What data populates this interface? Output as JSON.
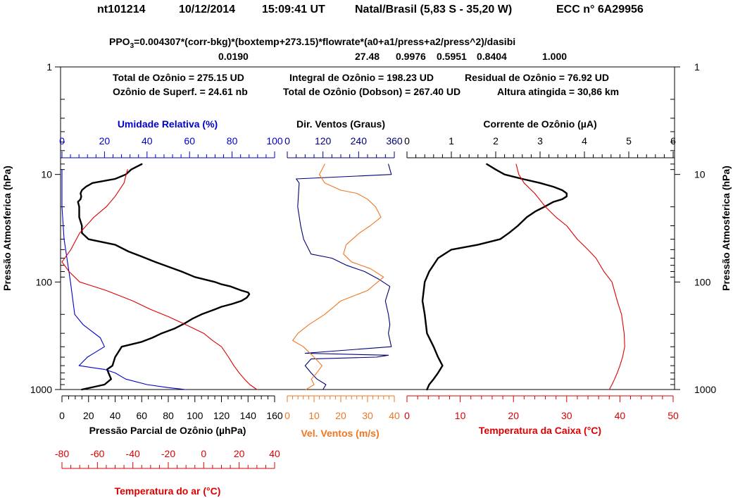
{
  "header": {
    "station": "nt101214",
    "date": "10/12/2014",
    "time": "15:09:41 UT",
    "location": "Natal/Brasil (5,83 S - 35,20 W)",
    "sonde": "ECC  n° 6A29956"
  },
  "formula": {
    "prefix": "PPO",
    "subscript": "3",
    "expression": "=0.004307*(corr-bkg)*(boxtemp+273.15)*flowrate*(a0+a1/press+a2/press^2)/dasibi",
    "coefficients": [
      "0.0190",
      "27.48",
      "0.9976",
      "0.5951",
      "0.8404",
      "1.000"
    ]
  },
  "summary": {
    "line1": [
      "Total de Ozônio = 275.15 UD",
      "Integral de Ozônio = 198.23  UD",
      "Residual  de Ozônio = 76.92  UD"
    ],
    "line2": [
      "Ozônio de Superf. = 24.61 nb",
      "Total de Ozônio (Dobson) = 267.40 UD",
      "Altura atingida = 30,86 km"
    ]
  },
  "colors": {
    "ozone": "#000000",
    "humidity": "#0000cc",
    "air_temperature": "#dd0000",
    "wind_direction": "#00007a",
    "wind_speed": "#ee7722",
    "ozone_current": "#000000",
    "box_temperature": "#dd0000",
    "axis_air_temperature": "#dd0000",
    "axis_wind_speed": "#ee7722",
    "axis_box_temperature": "#dd0000"
  },
  "chart_data": [
    {
      "type": "line",
      "panel": "left",
      "y_axis": {
        "label": "Pressão Atmosferica (hPa)",
        "scale": "log",
        "inverted": true,
        "range": [
          1,
          1000
        ],
        "ticks": [
          "1",
          "10",
          "100",
          "1000"
        ]
      },
      "axes": {
        "ozone": {
          "label": "Pressão Parcial de Ozônio (µhPa)",
          "position": "bottom",
          "range": [
            0,
            160
          ],
          "ticks": [
            "0",
            "20",
            "40",
            "60",
            "80",
            "100",
            "120",
            "140",
            "160"
          ]
        },
        "humidity": {
          "label": "Umidade Relativa (%)",
          "position": "top",
          "range": [
            0,
            100
          ],
          "ticks": [
            "0",
            "20",
            "40",
            "60",
            "80",
            "100"
          ]
        },
        "air_temperature": {
          "label": "Temperatura do ar (°C)",
          "position": "bottom-offset",
          "range": [
            -80,
            40
          ],
          "ticks": [
            "-80",
            "-60",
            "-40",
            "-20",
            "0",
            "20",
            "40"
          ]
        }
      },
      "series": [
        {
          "name": "Pressão Parcial de Ozônio",
          "axis": "ozone",
          "points": [
            [
              60,
              8
            ],
            [
              52,
              9
            ],
            [
              48,
              10
            ],
            [
              40,
              11
            ],
            [
              23,
              12
            ],
            [
              18,
              13
            ],
            [
              15,
              14
            ],
            [
              14,
              15
            ],
            [
              14.5,
              16
            ],
            [
              14,
              17
            ],
            [
              12,
              18
            ],
            [
              13,
              20
            ],
            [
              13,
              25
            ],
            [
              15,
              30
            ],
            [
              15,
              35
            ],
            [
              20,
              40
            ],
            [
              40,
              45
            ],
            [
              50,
              52
            ],
            [
              60,
              58
            ],
            [
              70,
              65
            ],
            [
              80,
              72
            ],
            [
              90,
              80
            ],
            [
              100,
              90
            ],
            [
              115,
              100
            ],
            [
              120,
              105
            ],
            [
              127,
              110
            ],
            [
              131,
              115
            ],
            [
              135,
              120
            ],
            [
              140,
              125
            ],
            [
              141,
              130
            ],
            [
              139,
              140
            ],
            [
              135,
              150
            ],
            [
              128,
              160
            ],
            [
              120,
              170
            ],
            [
              115,
              180
            ],
            [
              105,
              200
            ],
            [
              98,
              220
            ],
            [
              93,
              240
            ],
            [
              85,
              270
            ],
            [
              75,
              300
            ],
            [
              68,
              330
            ],
            [
              60,
              360
            ],
            [
              45,
              400
            ],
            [
              40,
              500
            ],
            [
              38,
              600
            ],
            [
              34,
              650
            ],
            [
              35,
              700
            ],
            [
              37,
              800
            ],
            [
              32,
              900
            ],
            [
              15,
              1000
            ]
          ]
        },
        {
          "name": "Umidade Relativa",
          "axis": "humidity",
          "points": [
            [
              0,
              9
            ],
            [
              0,
              20
            ],
            [
              1,
              40
            ],
            [
              4,
              100
            ],
            [
              6,
              200
            ],
            [
              10,
              250
            ],
            [
              18,
              330
            ],
            [
              20,
              400
            ],
            [
              12,
              500
            ],
            [
              8,
              600
            ],
            [
              20,
              650
            ],
            [
              25,
              700
            ],
            [
              30,
              800
            ],
            [
              40,
              900
            ],
            [
              50,
              960
            ],
            [
              58,
              1000
            ]
          ]
        },
        {
          "name": "Temperatura do ar",
          "axis": "air_temperature",
          "points": [
            [
              -43,
              9
            ],
            [
              -45,
              12
            ],
            [
              -50,
              16
            ],
            [
              -55,
              20
            ],
            [
              -62,
              25
            ],
            [
              -70,
              35
            ],
            [
              -75,
              50
            ],
            [
              -80,
              65
            ],
            [
              -76,
              80
            ],
            [
              -70,
              100
            ],
            [
              -55,
              120
            ],
            [
              -40,
              150
            ],
            [
              -30,
              180
            ],
            [
              -20,
              210
            ],
            [
              -10,
              250
            ],
            [
              0,
              300
            ],
            [
              5,
              350
            ],
            [
              10,
              400
            ],
            [
              14,
              500
            ],
            [
              17,
              600
            ],
            [
              20,
              700
            ],
            [
              23,
              800
            ],
            [
              26,
              900
            ],
            [
              30,
              1000
            ]
          ]
        }
      ]
    },
    {
      "type": "line",
      "panel": "middle",
      "axes": {
        "wind_direction": {
          "label": "Dir. Ventos (Graus)",
          "position": "top",
          "range": [
            0,
            360
          ],
          "ticks": [
            "0",
            "120",
            "240",
            "360"
          ]
        },
        "wind_speed": {
          "label": "Vel. Ventos (m/s)",
          "position": "bottom",
          "range": [
            0,
            40
          ],
          "ticks": [
            "0",
            "10",
            "20",
            "30",
            "40"
          ]
        }
      },
      "series": [
        {
          "name": "Dir. Ventos",
          "axis": "wind_direction",
          "points": [
            [
              340,
              8
            ],
            [
              350,
              10
            ],
            [
              30,
              11
            ],
            [
              40,
              12
            ],
            [
              35,
              20
            ],
            [
              45,
              30
            ],
            [
              55,
              40
            ],
            [
              80,
              55
            ],
            [
              150,
              60
            ],
            [
              200,
              70
            ],
            [
              260,
              80
            ],
            [
              310,
              95
            ],
            [
              345,
              110
            ],
            [
              330,
              150
            ],
            [
              340,
              200
            ],
            [
              345,
              250
            ],
            [
              340,
              300
            ],
            [
              350,
              400
            ],
            [
              60,
              460
            ],
            [
              340,
              480
            ],
            [
              300,
              500
            ],
            [
              80,
              520
            ],
            [
              60,
              600
            ],
            [
              80,
              700
            ],
            [
              100,
              800
            ],
            [
              130,
              900
            ],
            [
              120,
              1000
            ]
          ]
        },
        {
          "name": "Vel. Ventos",
          "axis": "wind_speed",
          "points": [
            [
              14,
              8
            ],
            [
              12,
              10
            ],
            [
              14,
              12
            ],
            [
              20,
              14
            ],
            [
              26,
              15
            ],
            [
              30,
              17
            ],
            [
              33,
              20
            ],
            [
              35,
              25
            ],
            [
              31,
              30
            ],
            [
              27,
              35
            ],
            [
              22,
              45
            ],
            [
              21,
              55
            ],
            [
              24,
              65
            ],
            [
              31,
              75
            ],
            [
              36,
              90
            ],
            [
              30,
              120
            ],
            [
              20,
              150
            ],
            [
              14,
              200
            ],
            [
              8,
              250
            ],
            [
              4,
              300
            ],
            [
              2,
              350
            ],
            [
              6,
              400
            ],
            [
              10,
              500
            ],
            [
              13,
              600
            ],
            [
              11,
              700
            ],
            [
              9,
              800
            ],
            [
              10,
              900
            ],
            [
              7,
              1000
            ]
          ]
        }
      ]
    },
    {
      "type": "line",
      "panel": "right",
      "axes": {
        "ozone_current": {
          "label": "Corrente de Ozônio (µA)",
          "position": "top",
          "range": [
            0,
            6
          ],
          "ticks": [
            "0",
            "1",
            "2",
            "3",
            "4",
            "5",
            "6"
          ]
        },
        "box_temperature": {
          "label": "Temperatura da Caixa (°C)",
          "position": "bottom",
          "range": [
            0,
            50
          ],
          "ticks": [
            "0",
            "10",
            "20",
            "30",
            "40",
            "50"
          ]
        }
      },
      "series": [
        {
          "name": "Corrente de Ozônio",
          "axis": "ozone_current",
          "points": [
            [
              1.8,
              8
            ],
            [
              2.0,
              9
            ],
            [
              2.2,
              10
            ],
            [
              2.6,
              11
            ],
            [
              3.0,
              12
            ],
            [
              3.3,
              13
            ],
            [
              3.5,
              14
            ],
            [
              3.6,
              15
            ],
            [
              3.6,
              16
            ],
            [
              3.5,
              17
            ],
            [
              3.3,
              18
            ],
            [
              3.1,
              20
            ],
            [
              2.9,
              22
            ],
            [
              2.7,
              25
            ],
            [
              2.5,
              30
            ],
            [
              2.3,
              35
            ],
            [
              2.1,
              40
            ],
            [
              1.6,
              45
            ],
            [
              1.0,
              50
            ],
            [
              0.7,
              60
            ],
            [
              0.5,
              80
            ],
            [
              0.4,
              100
            ],
            [
              0.35,
              150
            ],
            [
              0.4,
              200
            ],
            [
              0.45,
              300
            ],
            [
              0.6,
              400
            ],
            [
              0.7,
              500
            ],
            [
              0.8,
              600
            ],
            [
              0.7,
              700
            ],
            [
              0.6,
              800
            ],
            [
              0.5,
              900
            ],
            [
              0.45,
              1000
            ]
          ]
        },
        {
          "name": "Temperatura da Caixa",
          "axis": "box_temperature",
          "points": [
            [
              20.5,
              8
            ],
            [
              21,
              10
            ],
            [
              22,
              12
            ],
            [
              24,
              15
            ],
            [
              26,
              20
            ],
            [
              28,
              25
            ],
            [
              30,
              30
            ],
            [
              32,
              40
            ],
            [
              34,
              50
            ],
            [
              35.5,
              60
            ],
            [
              37,
              80
            ],
            [
              38.5,
              100
            ],
            [
              39.5,
              150
            ],
            [
              40.3,
              200
            ],
            [
              40.8,
              300
            ],
            [
              40.9,
              400
            ],
            [
              40.5,
              500
            ],
            [
              40,
              600
            ],
            [
              39.5,
              700
            ],
            [
              39,
              800
            ],
            [
              38.5,
              900
            ],
            [
              38,
              1000
            ]
          ]
        }
      ]
    }
  ]
}
